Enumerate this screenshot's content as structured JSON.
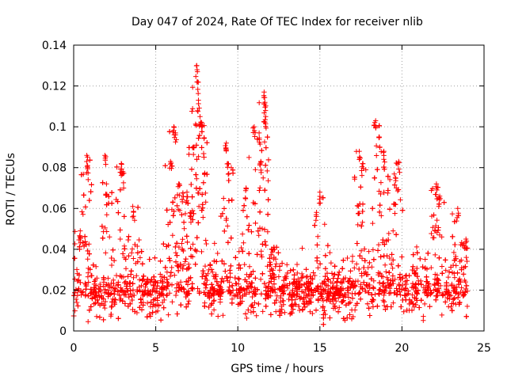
{
  "chart_data": {
    "type": "scatter",
    "title": "Day 047 of 2024, Rate Of TEC Index for receiver nlib",
    "xlabel": "GPS time / hours",
    "ylabel": "ROTI / TECUs",
    "xlim": [
      0,
      25
    ],
    "ylim": [
      0,
      0.14
    ],
    "xticks": [
      0,
      5,
      10,
      15,
      20,
      25
    ],
    "xtick_labels": [
      "0",
      "5",
      "10",
      "15",
      "20",
      "25"
    ],
    "yticks": [
      0,
      0.02,
      0.04,
      0.06,
      0.08,
      0.1,
      0.12,
      0.14
    ],
    "ytick_labels": [
      "0",
      "0.02",
      "0.04",
      "0.06",
      "0.08",
      "0.1",
      "0.12",
      "0.14"
    ],
    "grid": true,
    "marker": "+",
    "series": [
      {
        "name": "ROTI",
        "color": "#ff0000",
        "x_range": [
          0,
          24
        ],
        "baseline": 0.017,
        "spread": 0.012,
        "notable_points": [
          {
            "x": 0.4,
            "y": 0.049
          },
          {
            "x": 0.8,
            "y": 0.086
          },
          {
            "x": 0.85,
            "y": 0.08
          },
          {
            "x": 1.9,
            "y": 0.086
          },
          {
            "x": 2.0,
            "y": 0.072
          },
          {
            "x": 2.9,
            "y": 0.082
          },
          {
            "x": 3.0,
            "y": 0.078
          },
          {
            "x": 3.6,
            "y": 0.061
          },
          {
            "x": 5.9,
            "y": 0.083
          },
          {
            "x": 6.1,
            "y": 0.1
          },
          {
            "x": 6.2,
            "y": 0.097
          },
          {
            "x": 6.4,
            "y": 0.072
          },
          {
            "x": 6.9,
            "y": 0.068
          },
          {
            "x": 7.1,
            "y": 0.058
          },
          {
            "x": 7.3,
            "y": 0.09
          },
          {
            "x": 7.5,
            "y": 0.13
          },
          {
            "x": 7.55,
            "y": 0.122
          },
          {
            "x": 7.6,
            "y": 0.113
          },
          {
            "x": 7.7,
            "y": 0.105
          },
          {
            "x": 7.8,
            "y": 0.102
          },
          {
            "x": 9.3,
            "y": 0.092
          },
          {
            "x": 9.4,
            "y": 0.082
          },
          {
            "x": 10.5,
            "y": 0.07
          },
          {
            "x": 11.0,
            "y": 0.1
          },
          {
            "x": 11.3,
            "y": 0.097
          },
          {
            "x": 11.4,
            "y": 0.083
          },
          {
            "x": 11.6,
            "y": 0.117
          },
          {
            "x": 11.65,
            "y": 0.112
          },
          {
            "x": 11.7,
            "y": 0.105
          },
          {
            "x": 12.2,
            "y": 0.041
          },
          {
            "x": 15.0,
            "y": 0.068
          },
          {
            "x": 17.4,
            "y": 0.088
          },
          {
            "x": 17.6,
            "y": 0.082
          },
          {
            "x": 18.4,
            "y": 0.103
          },
          {
            "x": 18.6,
            "y": 0.095
          },
          {
            "x": 18.9,
            "y": 0.088
          },
          {
            "x": 19.6,
            "y": 0.075
          },
          {
            "x": 19.8,
            "y": 0.083
          },
          {
            "x": 22.1,
            "y": 0.072
          },
          {
            "x": 22.3,
            "y": 0.066
          },
          {
            "x": 23.4,
            "y": 0.06
          },
          {
            "x": 23.9,
            "y": 0.045
          }
        ]
      }
    ]
  }
}
